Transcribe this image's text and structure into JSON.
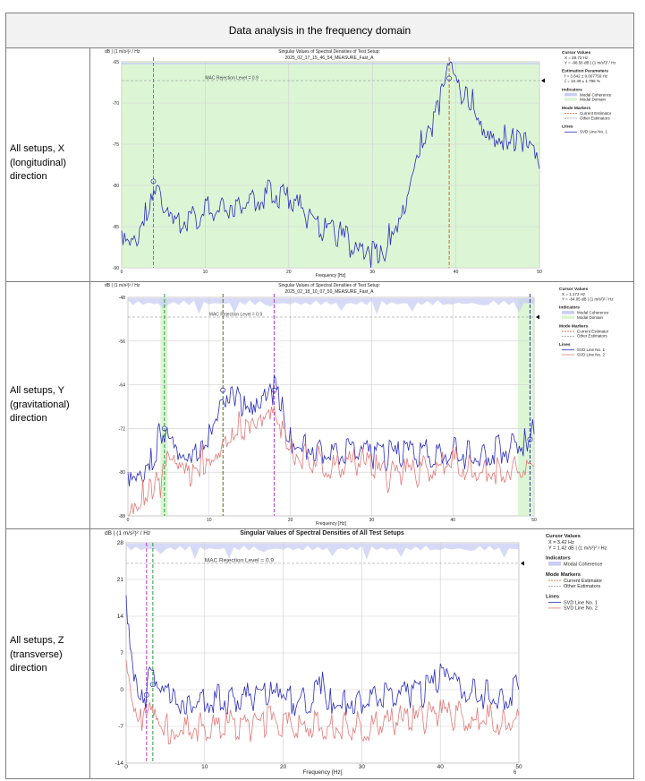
{
  "header": {
    "title": "Data analysis in the frequency domain"
  },
  "rows": [
    {
      "label": "All setups, X (longitudinal) direction"
    },
    {
      "label": "All setups, Y (gravitational) direction"
    },
    {
      "label": "All setups, Z (transverse) direction"
    }
  ],
  "footer_mark": "6",
  "chart_data": [
    {
      "type": "line",
      "title": "Singular Values of Spectral Densities of Test Setup:",
      "subtitle": "2025_02_17_15_46_54_MEASURE_Fast_A",
      "ylabel": "dB | (1 m/s²)² / Hz",
      "xlabel": "Frequency [Hz]",
      "xlim": [
        0,
        50
      ],
      "ylim": [
        -90,
        -65
      ],
      "xticks": [
        0,
        10,
        20,
        30,
        40,
        50
      ],
      "yticks": [
        -65,
        -70,
        -75,
        -80,
        -85,
        -90
      ],
      "grid": true,
      "mac_label": "MAC Rejection Level = 0.9",
      "series": [
        {
          "name": "SVD Line No. 1",
          "color": "#2c2cbf",
          "x": [
            0,
            1,
            2,
            3,
            3.5,
            4,
            5,
            6,
            8,
            10,
            12,
            14,
            16,
            18,
            20,
            22,
            24,
            26,
            28,
            29,
            30,
            31,
            32,
            33,
            34,
            35,
            36,
            37,
            38,
            39,
            39.5,
            40,
            41,
            42,
            43,
            44,
            45,
            46,
            47,
            48,
            49,
            50
          ],
          "y": [
            -85.5,
            -86,
            -85.5,
            -83,
            -81,
            -79.5,
            -83.5,
            -85,
            -84,
            -83,
            -82.5,
            -82,
            -81.5,
            -81,
            -81.5,
            -83.5,
            -85,
            -86,
            -87.5,
            -89,
            -88.5,
            -89,
            -86,
            -84,
            -81.5,
            -77,
            -74.5,
            -73,
            -70.5,
            -67,
            -66,
            -68,
            -69.5,
            -70,
            -72,
            -73,
            -74,
            -74,
            -75,
            -75,
            -76,
            -78
          ]
        }
      ],
      "modal_domain": [
        0,
        50
      ],
      "markers": [
        {
          "x": 3.8,
          "color": "#d6672a"
        },
        {
          "x": 39.2,
          "color": "#d6672a"
        }
      ],
      "legend": {
        "sections": [
          {
            "title": "Cursor Values",
            "lines": [
              "X = 29.73 Hz",
              "Y = -88.56 dB | (1 m/s²)² / Hz"
            ]
          },
          {
            "title": "Estimation Parameters",
            "lines": [
              "f = 3.842 ± 0.007759 Hz",
              "ζ = 10.49 ± 1.796 %"
            ]
          },
          {
            "title": "Indicators",
            "items": [
              "Modal Coherence",
              "Modal Domain"
            ]
          },
          {
            "title": "Mode Markers",
            "items": [
              "Current Estimator",
              "Other Estimators"
            ]
          },
          {
            "title": "Lines",
            "items": [
              "SVD Line No. 1"
            ]
          }
        ]
      }
    },
    {
      "type": "line",
      "title": "Singular Values of Spectral Densities of Test Setup:",
      "subtitle": "2025_02_18_10_07_50_MEASURE_Fast_A",
      "ylabel": "dB | (1 m/s²)² / Hz",
      "xlabel": "Frequency [Hz]",
      "xlim": [
        0,
        50
      ],
      "ylim": [
        -88,
        -48
      ],
      "xticks": [
        0,
        10,
        20,
        30,
        40,
        50
      ],
      "yticks": [
        -48,
        -56,
        -64,
        -72,
        -80,
        -88
      ],
      "grid": true,
      "mac_label": "MAC Rejection Level = 0.9",
      "series": [
        {
          "name": "SVD Line No. 1",
          "color": "#2c2cbf",
          "x": [
            0,
            1,
            2,
            3,
            4,
            4.5,
            5,
            6,
            7,
            8,
            9,
            10,
            11,
            11.5,
            12,
            13,
            14,
            15,
            16,
            17,
            18,
            19,
            20,
            22,
            24,
            26,
            28,
            30,
            32,
            34,
            36,
            38,
            40,
            42,
            44,
            46,
            48,
            49,
            50
          ],
          "y": [
            -80,
            -79.5,
            -79,
            -77.5,
            -73,
            -72,
            -74,
            -78,
            -79,
            -78,
            -76,
            -72,
            -68,
            -65,
            -66,
            -65,
            -67,
            -70,
            -69,
            -67,
            -65,
            -69,
            -74,
            -75,
            -76,
            -77,
            -76,
            -77,
            -77,
            -77,
            -76,
            -77,
            -76,
            -77,
            -76,
            -76,
            -75,
            -74,
            -73
          ]
        },
        {
          "name": "SVD Line No. 2",
          "color": "#e37a7a",
          "x": [
            0,
            1,
            2,
            3,
            4,
            5,
            6,
            7,
            8,
            9,
            10,
            11,
            12,
            13,
            14,
            15,
            16,
            17,
            18,
            19,
            20,
            22,
            24,
            26,
            28,
            30,
            32,
            34,
            36,
            38,
            40,
            42,
            44,
            46,
            48,
            50
          ],
          "y": [
            -86,
            -85,
            -84,
            -83,
            -82,
            -78,
            -80,
            -81,
            -80,
            -78,
            -77,
            -76,
            -73,
            -72,
            -71,
            -72,
            -73,
            -71,
            -70,
            -73,
            -76,
            -77,
            -78,
            -79,
            -78,
            -79,
            -81,
            -80,
            -80,
            -79,
            -78,
            -79,
            -80,
            -79,
            -80,
            -79
          ]
        }
      ],
      "modal_domain": [
        [
          4.0,
          4.9
        ],
        [
          48.0,
          50
        ]
      ],
      "markers": [
        {
          "x": 4.5,
          "color": "#2e9a3d"
        },
        {
          "x": 11.7,
          "color": "#556b1a"
        },
        {
          "x": 18.0,
          "color": "#b03ad0"
        },
        {
          "x": 49.5,
          "color": "#2c2cbf"
        }
      ],
      "legend": {
        "sections": [
          {
            "title": "Cursor Values",
            "lines": [
              "X = 1.172 Hz",
              "Y = -84.05 dB | (1 m/s²)² / Hz"
            ]
          },
          {
            "title": "Indicators",
            "items": [
              "Modal Coherence",
              "Modal Domain"
            ]
          },
          {
            "title": "Mode Markers",
            "items": [
              "Current Estimator",
              "Other Estimators"
            ]
          },
          {
            "title": "Lines",
            "items": [
              "SVD Line No. 1",
              "SVD Line No. 2"
            ]
          }
        ]
      }
    },
    {
      "type": "line",
      "title": "Singular Values of Spectral Densities of All Test Setups",
      "subtitle": "",
      "ylabel": "dB | (1 m/s²)² / Hz",
      "xlabel": "Frequency [Hz]",
      "xlim": [
        0,
        50
      ],
      "ylim": [
        -14,
        28
      ],
      "xticks": [
        0,
        10,
        20,
        30,
        40,
        50
      ],
      "yticks": [
        28,
        21,
        14,
        7,
        0,
        -7,
        -14
      ],
      "grid": true,
      "mac_label": "MAC Rejection Level = 0.9",
      "series": [
        {
          "name": "SVD Line No. 1",
          "color": "#2c2cbf",
          "x": [
            0,
            0.5,
            1,
            1.5,
            2,
            2.5,
            3,
            3.5,
            4,
            5,
            6,
            8,
            10,
            12,
            14,
            16,
            18,
            19,
            20,
            22,
            24,
            25,
            26,
            28,
            30,
            32,
            34,
            36,
            38,
            40,
            41,
            42,
            44,
            46,
            48,
            50
          ],
          "y": [
            18,
            10,
            4,
            1,
            0,
            -1,
            4,
            1,
            -1,
            -1.5,
            -1.5,
            -2,
            -1.5,
            -2,
            -2,
            -1.5,
            0,
            -1.5,
            -2,
            -2,
            -1.5,
            0.5,
            -2,
            -2,
            -2,
            -1.5,
            -1.5,
            -1,
            -0.5,
            2,
            1.5,
            0.5,
            -0.5,
            -1,
            -1,
            0
          ]
        },
        {
          "name": "SVD Line No. 2",
          "color": "#e37a7a",
          "x": [
            0,
            0.5,
            1,
            1.5,
            2,
            2.5,
            3,
            3.5,
            4,
            5,
            6,
            8,
            10,
            12,
            14,
            16,
            18,
            20,
            22,
            24,
            26,
            28,
            30,
            32,
            34,
            36,
            38,
            40,
            42,
            44,
            46,
            48,
            50
          ],
          "y": [
            8,
            2,
            -2,
            -4,
            -5,
            -6,
            -4,
            -6,
            -7,
            -7.5,
            -7.5,
            -7,
            -7,
            -7,
            -6.5,
            -7,
            -6,
            -6.5,
            -7,
            -6.5,
            -7,
            -6.5,
            -7,
            -6.5,
            -6,
            -6,
            -5.5,
            -4.5,
            -5,
            -6,
            -5.5,
            -6,
            -5
          ]
        }
      ],
      "markers": [
        {
          "x": 2.6,
          "color": "#b03ad0"
        },
        {
          "x": 3.4,
          "color": "#2e9a3d"
        }
      ],
      "legend": {
        "sections": [
          {
            "title": "Cursor Values",
            "lines": [
              "X = 3.42 Hz",
              "Y = 1.42 dB | (1 m/s²)² / Hz"
            ]
          },
          {
            "title": "Indicators",
            "items": [
              "Modal Coherence"
            ]
          },
          {
            "title": "Mode Markers",
            "items": [
              "Current Estimator",
              "Other Estimators"
            ]
          },
          {
            "title": "Lines",
            "items": [
              "SVD Line No. 1",
              "SVD Line No. 2"
            ]
          }
        ]
      }
    }
  ]
}
